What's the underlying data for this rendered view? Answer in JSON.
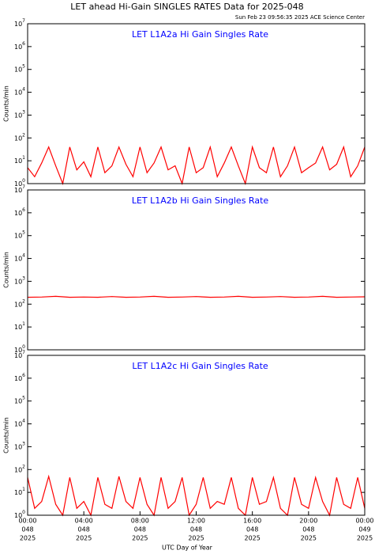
{
  "title": "LET ahead Hi-Gain SINGLES RATES Data for 2025-048",
  "subtitle": "Sun Feb 23 09:56:35 2025 ACE Science Center",
  "x_label": "UTC Day of Year",
  "chart_data": [
    {
      "type": "line",
      "annotation": "LET L1A2a Hi Gain Singles Rate",
      "y_label": "Counts/min",
      "log_y": true,
      "xlim": [
        0,
        24
      ],
      "ylim": [
        1,
        10000000
      ],
      "yticks": [
        {
          "value": 1,
          "label": "10",
          "exponent": "0"
        },
        {
          "value": 10,
          "label": "10",
          "exponent": "1"
        },
        {
          "value": 100,
          "label": "10",
          "exponent": "2"
        },
        {
          "value": 1000,
          "label": "10",
          "exponent": "3"
        },
        {
          "value": 10000,
          "label": "10",
          "exponent": "4"
        },
        {
          "value": 100000,
          "label": "10",
          "exponent": "5"
        },
        {
          "value": 1000000,
          "label": "10",
          "exponent": "6"
        },
        {
          "value": 10000000,
          "label": "10",
          "exponent": "7"
        }
      ],
      "x": [
        0,
        0.5,
        1,
        1.5,
        2,
        2.5,
        3,
        3.5,
        4,
        4.5,
        5,
        5.5,
        6,
        6.5,
        7,
        7.5,
        8,
        8.5,
        9,
        9.5,
        10,
        10.5,
        11,
        11.5,
        12,
        12.5,
        13,
        13.5,
        14,
        14.5,
        15,
        15.5,
        16,
        16.5,
        17,
        17.5,
        18,
        18.5,
        19,
        19.5,
        20,
        20.5,
        21,
        21.5,
        22,
        22.5,
        23,
        23.5,
        24
      ],
      "series": [
        {
          "color": "#ff0000",
          "values": [
            5,
            2,
            8,
            40,
            6,
            1,
            40,
            4,
            9,
            2,
            40,
            3,
            6,
            40,
            7,
            2,
            40,
            3,
            8,
            40,
            4,
            6,
            1,
            40,
            3,
            5,
            40,
            2,
            8,
            40,
            6,
            1,
            40,
            5,
            3,
            40,
            2,
            6,
            40,
            3,
            5,
            8,
            40,
            4,
            7,
            40,
            2,
            6,
            40
          ]
        }
      ]
    },
    {
      "type": "line",
      "annotation": "LET L1A2b Hi Gain Singles Rate",
      "y_label": "Counts/min",
      "log_y": true,
      "xlim": [
        0,
        24
      ],
      "ylim": [
        1,
        10000000
      ],
      "yticks": [
        {
          "value": 1,
          "label": "10",
          "exponent": "0"
        },
        {
          "value": 10,
          "label": "10",
          "exponent": "1"
        },
        {
          "value": 100,
          "label": "10",
          "exponent": "2"
        },
        {
          "value": 1000,
          "label": "10",
          "exponent": "3"
        },
        {
          "value": 10000,
          "label": "10",
          "exponent": "4"
        },
        {
          "value": 100000,
          "label": "10",
          "exponent": "5"
        },
        {
          "value": 1000000,
          "label": "10",
          "exponent": "6"
        },
        {
          "value": 10000000,
          "label": "10",
          "exponent": "7"
        }
      ],
      "x": [
        0,
        1,
        2,
        3,
        4,
        5,
        6,
        7,
        8,
        9,
        10,
        11,
        12,
        13,
        14,
        15,
        16,
        17,
        18,
        19,
        20,
        21,
        22,
        23,
        24
      ],
      "series": [
        {
          "color": "#ff0000",
          "values": [
            200,
            205,
            220,
            200,
            205,
            200,
            215,
            200,
            205,
            220,
            200,
            205,
            215,
            200,
            205,
            220,
            200,
            205,
            215,
            200,
            205,
            220,
            200,
            205,
            210
          ]
        }
      ]
    },
    {
      "type": "line",
      "annotation": "LET L1A2c Hi Gain Singles Rate",
      "y_label": "Counts/min",
      "log_y": true,
      "xlim": [
        0,
        24
      ],
      "ylim": [
        1,
        10000000
      ],
      "yticks": [
        {
          "value": 1,
          "label": "10",
          "exponent": "0"
        },
        {
          "value": 10,
          "label": "10",
          "exponent": "1"
        },
        {
          "value": 100,
          "label": "10",
          "exponent": "2"
        },
        {
          "value": 1000,
          "label": "10",
          "exponent": "3"
        },
        {
          "value": 10000,
          "label": "10",
          "exponent": "4"
        },
        {
          "value": 100000,
          "label": "10",
          "exponent": "5"
        },
        {
          "value": 1000000,
          "label": "10",
          "exponent": "6"
        },
        {
          "value": 10000000,
          "label": "10",
          "exponent": "7"
        }
      ],
      "xticks": [
        {
          "value": 0,
          "label": [
            "00:00",
            "048",
            "2025"
          ]
        },
        {
          "value": 4,
          "label": [
            "04:00",
            "048",
            "2025"
          ]
        },
        {
          "value": 8,
          "label": [
            "08:00",
            "048",
            "2025"
          ]
        },
        {
          "value": 12,
          "label": [
            "12:00",
            "048",
            "2025"
          ]
        },
        {
          "value": 16,
          "label": [
            "16:00",
            "048",
            "2025"
          ]
        },
        {
          "value": 20,
          "label": [
            "20:00",
            "048",
            "2025"
          ]
        },
        {
          "value": 24,
          "label": [
            "00:00",
            "049",
            "2025"
          ]
        }
      ],
      "x": [
        0,
        0.5,
        1,
        1.5,
        2,
        2.5,
        3,
        3.5,
        4,
        4.5,
        5,
        5.5,
        6,
        6.5,
        7,
        7.5,
        8,
        8.5,
        9,
        9.5,
        10,
        10.5,
        11,
        11.5,
        12,
        12.5,
        13,
        13.5,
        14,
        14.5,
        15,
        15.5,
        16,
        16.5,
        17,
        17.5,
        18,
        18.5,
        19,
        19.5,
        20,
        20.5,
        21,
        21.5,
        22,
        22.5,
        23,
        23.5,
        24
      ],
      "series": [
        {
          "color": "#ff0000",
          "values": [
            45,
            2,
            4,
            50,
            3,
            1,
            45,
            2,
            4,
            1,
            45,
            3,
            2,
            50,
            4,
            2,
            45,
            3,
            1,
            45,
            2,
            4,
            45,
            1,
            3,
            45,
            2,
            4,
            3,
            45,
            2,
            1,
            45,
            3,
            4,
            45,
            2,
            1,
            45,
            3,
            2,
            45,
            4,
            1,
            45,
            3,
            2,
            45,
            2
          ]
        }
      ]
    }
  ]
}
